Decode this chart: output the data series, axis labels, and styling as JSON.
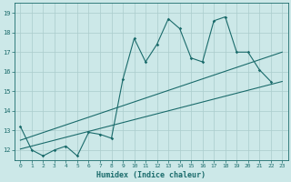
{
  "title": "",
  "xlabel": "Humidex (Indice chaleur)",
  "bg_color": "#cce8e8",
  "grid_color": "#aacccc",
  "line_color": "#1a6b6b",
  "xlim": [
    -0.5,
    23.5
  ],
  "ylim": [
    11.5,
    19.5
  ],
  "xticks": [
    0,
    1,
    2,
    3,
    4,
    5,
    6,
    7,
    8,
    9,
    10,
    11,
    12,
    13,
    14,
    15,
    16,
    17,
    18,
    19,
    20,
    21,
    22,
    23
  ],
  "yticks": [
    12,
    13,
    14,
    15,
    16,
    17,
    18,
    19
  ],
  "scatter_x": [
    0,
    1,
    2,
    3,
    4,
    5,
    6,
    7,
    8,
    9,
    10,
    11,
    12,
    13,
    14,
    15,
    16,
    17,
    18,
    19,
    20,
    21,
    22
  ],
  "scatter_y": [
    13.2,
    12.0,
    11.7,
    12.0,
    12.2,
    11.7,
    12.9,
    12.8,
    12.6,
    15.6,
    17.7,
    16.5,
    17.4,
    18.7,
    18.2,
    16.7,
    16.5,
    18.6,
    18.8,
    17.0,
    17.0,
    16.1,
    15.5
  ],
  "line1_x": [
    0,
    23
  ],
  "line1_y": [
    12.05,
    15.5
  ],
  "line2_x": [
    0,
    23
  ],
  "line2_y": [
    12.5,
    17.0
  ]
}
